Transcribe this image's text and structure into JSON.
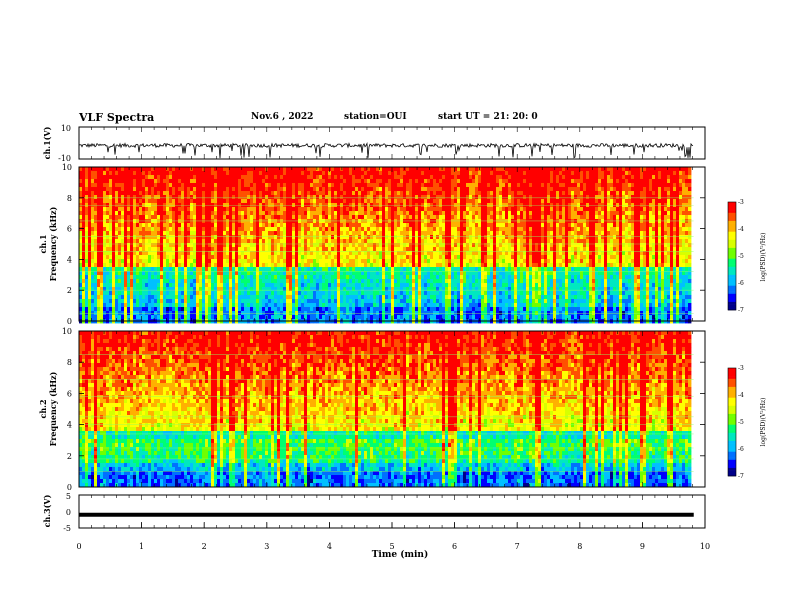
{
  "header": {
    "title": "VLF Spectra",
    "date": "Nov.6 , 2022",
    "station": "station=OUI",
    "start_ut": "start UT = 21: 20: 0"
  },
  "chart_data": [
    {
      "type": "line",
      "panel": "ch1-waveform",
      "ylabel": "ch.1(V)",
      "ylim": [
        -10,
        10
      ],
      "yticks": [
        "10",
        "-10"
      ],
      "xlim": [
        0,
        10
      ],
      "description_values": {
        "baseline_v": -1.5,
        "spread_v": 1.2
      }
    },
    {
      "type": "heatmap",
      "panel": "ch1-spectrogram",
      "ylabel": "ch.1\nFrequency (kHz)",
      "ylabel_line1": "ch.1",
      "ylabel_line2": "Frequency (kHz)",
      "ylim": [
        0,
        10
      ],
      "yticks": [
        "0",
        "2",
        "4",
        "6",
        "8",
        "10"
      ],
      "xlim": [
        0,
        10
      ],
      "data_end_min": 9.82,
      "colorbar": {
        "label": "log(PSD)(V²/Hz)",
        "range": [
          -7,
          -3
        ],
        "ticks": [
          "-3",
          "-4",
          "-5",
          "-6",
          "-7"
        ]
      }
    },
    {
      "type": "heatmap",
      "panel": "ch2-spectrogram",
      "ylabel_line1": "ch.2",
      "ylabel_line2": "Frequency (kHz)",
      "ylim": [
        0,
        10
      ],
      "yticks": [
        "0",
        "2",
        "4",
        "6",
        "8",
        "10"
      ],
      "xlim": [
        0,
        10
      ],
      "data_end_min": 9.82,
      "colorbar": {
        "label": "log(PSD)(V²/Hz)",
        "range": [
          -7,
          -3
        ],
        "ticks": [
          "-3",
          "-4",
          "-5",
          "-6",
          "-7"
        ]
      }
    },
    {
      "type": "line",
      "panel": "ch3-waveform",
      "ylabel": "ch.3(V)",
      "ylim": [
        -5,
        5
      ],
      "yticks": [
        "5",
        "0",
        "-5"
      ],
      "xlim": [
        0,
        10
      ],
      "values_constant_v": -1.0,
      "xlabel": "Time (min)",
      "xticks": [
        "0",
        "1",
        "2",
        "3",
        "4",
        "5",
        "6",
        "7",
        "8",
        "9",
        "10"
      ]
    }
  ],
  "colors": {
    "colormap": [
      "#000080",
      "#0000ff",
      "#00a0ff",
      "#00e0d0",
      "#00ff60",
      "#a0ff00",
      "#ffff00",
      "#ff8000",
      "#ff0000",
      "#ffffff"
    ],
    "trace": "#000000"
  }
}
